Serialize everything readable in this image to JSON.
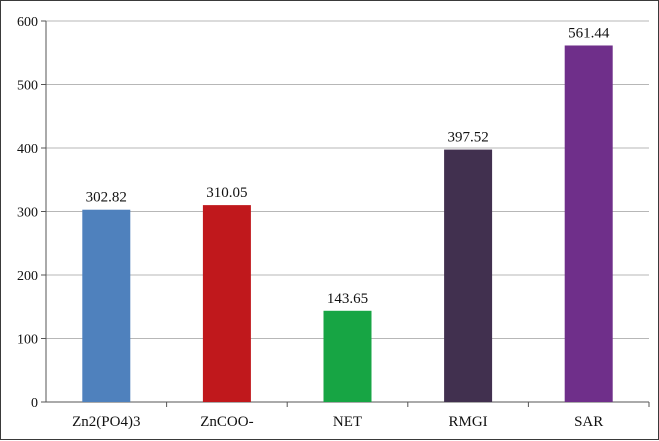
{
  "chart_data": {
    "type": "bar",
    "title": "",
    "xlabel": "",
    "ylabel": "",
    "categories": [
      "Zn2(PO4)3",
      "ZnCOO-",
      "NET",
      "RMGI",
      "SAR"
    ],
    "values": [
      302.82,
      310.05,
      143.65,
      397.52,
      561.44
    ],
    "value_labels": [
      "302.82",
      "310.05",
      "143.65",
      "397.52",
      "561.44"
    ],
    "bar_colors": [
      "#4f81bd",
      "#c0181c",
      "#17a544",
      "#41304f",
      "#6f2f8a"
    ],
    "ylim": [
      0,
      600
    ],
    "yticks": [
      0,
      100,
      200,
      300,
      400,
      500,
      600
    ],
    "grid": true,
    "legend": "none"
  }
}
